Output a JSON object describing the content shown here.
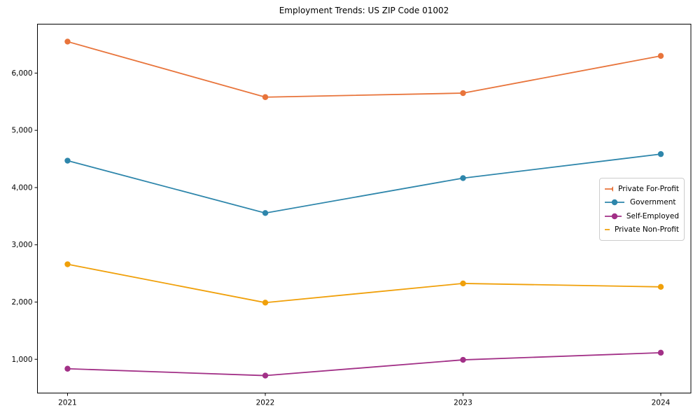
{
  "chart_data": {
    "type": "line",
    "title": "Employment Trends: US ZIP Code 01002",
    "categories": [
      "2021",
      "2022",
      "2023",
      "2024"
    ],
    "series": [
      {
        "name": "Private For-Profit",
        "color": "#E8743B",
        "values": [
          6550,
          5580,
          5650,
          6300
        ]
      },
      {
        "name": "Government",
        "color": "#2E86AB",
        "values": [
          4470,
          3555,
          4165,
          4585
        ]
      },
      {
        "name": "Self-Employed",
        "color": "#A23087",
        "values": [
          835,
          715,
          990,
          1115
        ]
      },
      {
        "name": "Private Non-Profit",
        "color": "#F0A00A",
        "values": [
          2660,
          1990,
          2325,
          2265
        ]
      }
    ],
    "yticks": [
      1000,
      2000,
      3000,
      4000,
      5000,
      6000
    ],
    "ytick_labels": [
      "1,000",
      "2,000",
      "3,000",
      "4,000",
      "5,000",
      "6,000"
    ],
    "ylim": [
      410,
      6855
    ],
    "xlabel": "",
    "ylabel": "",
    "grid": false,
    "legend_position": "center-right",
    "marker": "circle",
    "axis_color": "#000000"
  }
}
